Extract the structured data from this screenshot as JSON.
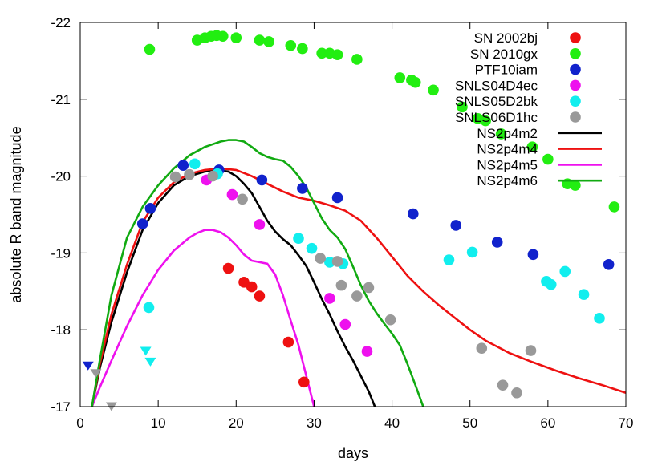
{
  "chart_data": {
    "type": "scatter",
    "xlabel": "days",
    "ylabel": "absolute R band magnitude",
    "xlim": [
      0,
      70
    ],
    "ylim": [
      -17,
      -22
    ],
    "y_inverted": true,
    "grid": false,
    "legend_position": "top-right",
    "xticks": [
      0,
      10,
      20,
      30,
      40,
      50,
      60,
      70
    ],
    "yticks": [
      -17,
      -18,
      -19,
      -20,
      -21,
      -22
    ],
    "series": [
      {
        "name": "SN 2002bj",
        "kind": "points",
        "color": "#ee1111",
        "x": [
          19.0,
          21.0,
          22.0,
          23.0,
          26.7,
          28.7
        ],
        "y": [
          -18.8,
          -18.62,
          -18.56,
          -18.44,
          -17.84,
          -17.32
        ]
      },
      {
        "name": "SN 2010gx",
        "kind": "points",
        "color": "#22ee11",
        "x": [
          8.9,
          15.0,
          16.0,
          16.8,
          17.5,
          18.3,
          20.0,
          23.0,
          24.2,
          27.0,
          28.5,
          31.0,
          32.0,
          33.0,
          35.5,
          41.0,
          42.5,
          43.0,
          45.3,
          49.0,
          51.0,
          52.0,
          54.0,
          58.0,
          60.0,
          62.5,
          63.5,
          68.5
        ],
        "y": [
          -21.65,
          -21.77,
          -21.8,
          -21.82,
          -21.83,
          -21.82,
          -21.8,
          -21.77,
          -21.75,
          -21.7,
          -21.66,
          -21.6,
          -21.6,
          -21.58,
          -21.52,
          -21.28,
          -21.25,
          -21.22,
          -21.12,
          -20.9,
          -20.75,
          -20.72,
          -20.55,
          -20.38,
          -20.22,
          -19.9,
          -19.88,
          -19.6
        ]
      },
      {
        "name": "PTF10iam",
        "kind": "points",
        "color": "#1122cc",
        "x": [
          8.0,
          9.0,
          13.2,
          17.8,
          23.3,
          28.5,
          33.0,
          42.7,
          48.2,
          53.5,
          58.1,
          67.8
        ],
        "y": [
          -19.38,
          -19.58,
          -20.14,
          -20.08,
          -19.95,
          -19.84,
          -19.72,
          -19.51,
          -19.36,
          -19.14,
          -18.98,
          -18.85
        ]
      },
      {
        "name": "SNLS04D4ec",
        "kind": "points",
        "color": "#ee11ee",
        "x": [
          16.2,
          19.5,
          23.0,
          32.0,
          34.0,
          36.8
        ],
        "y": [
          -19.95,
          -19.76,
          -19.37,
          -18.41,
          -18.07,
          -17.72
        ]
      },
      {
        "name": "SNLS05D2bk",
        "kind": "points",
        "color": "#11eeee",
        "x": [
          8.8,
          14.7,
          17.6,
          28.0,
          29.7,
          32.0,
          33.7,
          47.3,
          50.3,
          59.8,
          60.4,
          62.2,
          64.6,
          66.6
        ],
        "y": [
          -18.29,
          -20.16,
          -20.03,
          -19.19,
          -19.06,
          -18.88,
          -18.86,
          -18.91,
          -19.01,
          -18.63,
          -18.59,
          -18.76,
          -18.46,
          -18.15
        ]
      },
      {
        "name": "SNLS06D1hc",
        "kind": "points",
        "color": "#999999",
        "x": [
          12.2,
          14.0,
          17.0,
          20.8,
          30.8,
          33.0,
          33.5,
          35.5,
          37.0,
          39.8,
          51.5,
          54.2,
          56.0,
          57.8
        ],
        "y": [
          -19.99,
          -20.02,
          -20.0,
          -19.7,
          -18.93,
          -18.89,
          -18.58,
          -18.44,
          -18.55,
          -18.13,
          -17.76,
          -17.28,
          -17.18,
          -17.73
        ]
      },
      {
        "name": "NS2p4m2",
        "kind": "line",
        "color": "#000000",
        "x": [
          1.5,
          2.5,
          4.0,
          6.0,
          8.0,
          10.0,
          12.0,
          14.0,
          16.0,
          17.5,
          19.0,
          20.0,
          21.0,
          22.0,
          23.0,
          24.0,
          25.0,
          26.0,
          27.0,
          28.0,
          29.0,
          30.0,
          31.0,
          32.0,
          33.0,
          34.0,
          35.0,
          36.0,
          37.0,
          37.8
        ],
        "y": [
          -17.0,
          -17.5,
          -18.1,
          -18.75,
          -19.3,
          -19.65,
          -19.88,
          -20.0,
          -20.06,
          -20.08,
          -20.06,
          -20.0,
          -19.9,
          -19.78,
          -19.6,
          -19.42,
          -19.28,
          -19.18,
          -19.1,
          -18.97,
          -18.83,
          -18.62,
          -18.4,
          -18.2,
          -17.98,
          -17.78,
          -17.6,
          -17.4,
          -17.2,
          -17.0
        ]
      },
      {
        "name": "NS2p4m4",
        "kind": "line",
        "color": "#ee1111",
        "x": [
          1.5,
          2.5,
          4.0,
          6.0,
          8.0,
          10.0,
          12.0,
          14.0,
          16.0,
          18.0,
          20.0,
          22.0,
          24.0,
          26.0,
          28.0,
          30.0,
          32.0,
          34.0,
          36.0,
          38.0,
          40.0,
          42.0,
          44.0,
          46.0,
          48.0,
          50.0,
          52.0,
          55.0,
          58.0,
          61.0,
          64.0,
          67.0,
          70.0
        ],
        "y": [
          -17.0,
          -17.55,
          -18.2,
          -18.85,
          -19.4,
          -19.72,
          -19.92,
          -20.03,
          -20.08,
          -20.1,
          -20.08,
          -20.0,
          -19.9,
          -19.8,
          -19.72,
          -19.68,
          -19.62,
          -19.55,
          -19.42,
          -19.2,
          -18.95,
          -18.7,
          -18.5,
          -18.32,
          -18.16,
          -18.0,
          -17.86,
          -17.7,
          -17.58,
          -17.47,
          -17.37,
          -17.28,
          -17.18
        ]
      },
      {
        "name": "NS2p4m5",
        "kind": "line",
        "color": "#ee11ee",
        "x": [
          1.5,
          2.5,
          4.0,
          6.0,
          8.0,
          10.0,
          12.0,
          14.0,
          15.0,
          16.0,
          17.0,
          18.0,
          19.0,
          20.0,
          21.0,
          22.0,
          23.0,
          24.0,
          25.0,
          26.0,
          27.0,
          28.0,
          29.0,
          30.0
        ],
        "y": [
          -17.0,
          -17.25,
          -17.6,
          -18.05,
          -18.45,
          -18.78,
          -19.03,
          -19.2,
          -19.26,
          -19.3,
          -19.3,
          -19.27,
          -19.2,
          -19.1,
          -18.98,
          -18.9,
          -18.88,
          -18.86,
          -18.72,
          -18.45,
          -18.12,
          -17.8,
          -17.4,
          -17.0
        ]
      },
      {
        "name": "NS2p4m6",
        "kind": "line",
        "color": "#11aa11",
        "x": [
          1.5,
          2.5,
          4.0,
          6.0,
          8.0,
          10.0,
          12.0,
          14.0,
          16.0,
          18.0,
          19.0,
          20.0,
          21.0,
          22.0,
          23.0,
          24.0,
          25.0,
          26.0,
          27.0,
          28.0,
          29.0,
          30.0,
          31.0,
          32.0,
          33.0,
          34.0,
          35.0,
          36.0,
          37.0,
          38.0,
          39.0,
          40.0,
          41.0,
          42.0,
          43.0,
          44.0
        ],
        "y": [
          -17.0,
          -17.6,
          -18.45,
          -19.2,
          -19.6,
          -19.88,
          -20.1,
          -20.27,
          -20.38,
          -20.45,
          -20.47,
          -20.47,
          -20.45,
          -20.38,
          -20.3,
          -20.25,
          -20.22,
          -20.2,
          -20.12,
          -20.0,
          -19.85,
          -19.65,
          -19.45,
          -19.3,
          -19.2,
          -19.05,
          -18.82,
          -18.58,
          -18.38,
          -18.22,
          -18.08,
          -17.95,
          -17.8,
          -17.55,
          -17.28,
          -17.0
        ]
      }
    ],
    "upper_limits": [
      {
        "color": "#1122cc",
        "x": 1.0,
        "y": -17.53
      },
      {
        "color": "#999999",
        "x": 2.0,
        "y": -17.43
      },
      {
        "color": "#999999",
        "x": 4.0,
        "y": -17.0
      },
      {
        "color": "#11eeee",
        "x": 8.4,
        "y": -17.72
      },
      {
        "color": "#11eeee",
        "x": 9.0,
        "y": -17.58
      }
    ]
  }
}
